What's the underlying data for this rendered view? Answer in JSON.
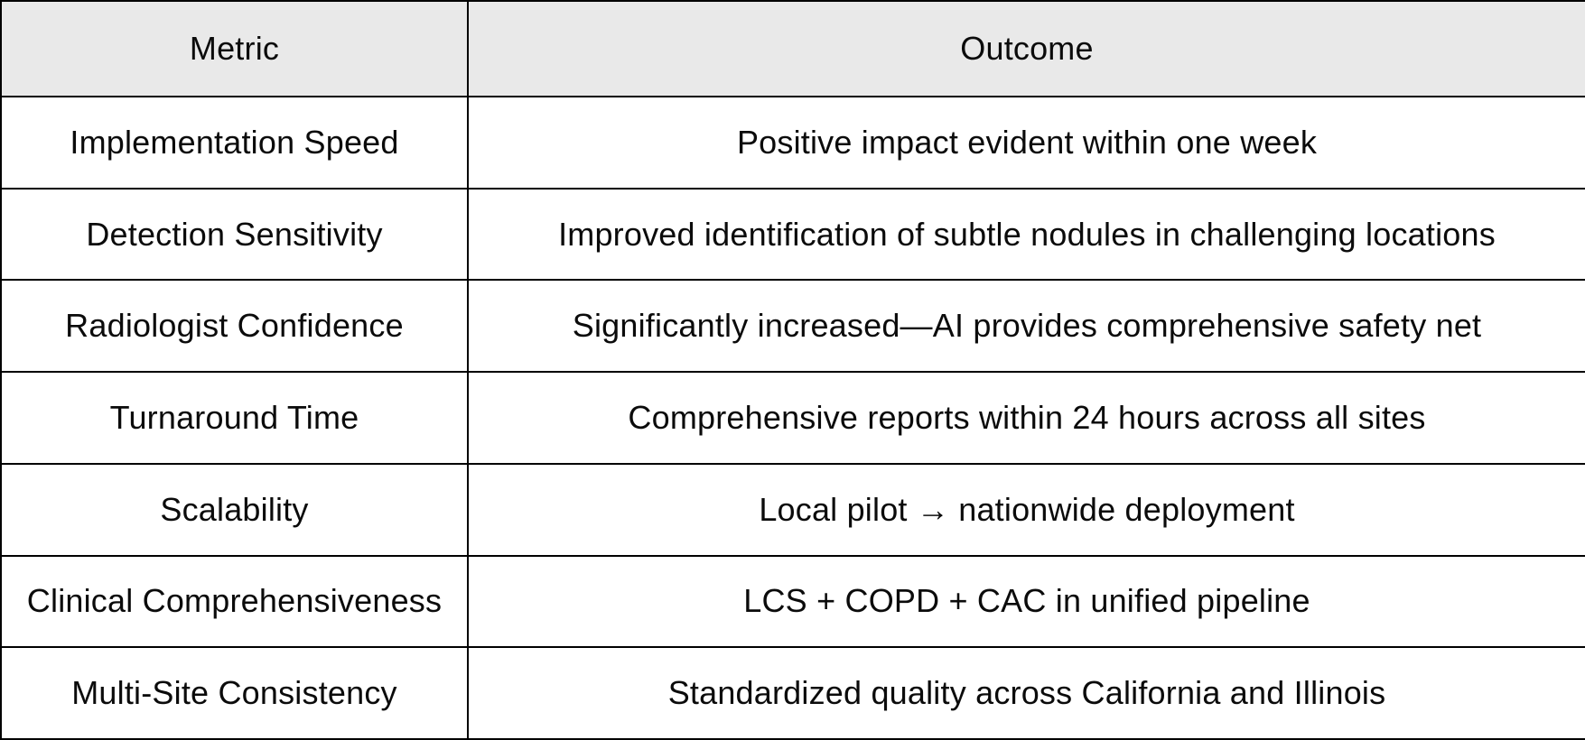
{
  "chart_data": {
    "type": "table",
    "columns": [
      "Metric",
      "Outcome"
    ],
    "rows": [
      {
        "metric": "Implementation Speed",
        "outcome": "Positive impact evident within one week"
      },
      {
        "metric": "Detection Sensitivity",
        "outcome": "Improved identification of subtle nodules in challenging locations"
      },
      {
        "metric": "Radiologist Confidence",
        "outcome": "Significantly increased—AI provides comprehensive safety net"
      },
      {
        "metric": "Turnaround Time",
        "outcome": "Comprehensive reports within 24 hours across all sites"
      },
      {
        "metric": "Scalability",
        "outcome": "Local pilot → nationwide deployment"
      },
      {
        "metric": "Clinical Comprehensiveness",
        "outcome": "LCS + COPD + CAC in unified pipeline"
      },
      {
        "metric": "Multi-Site Consistency",
        "outcome": "Standardized quality across California and Illinois"
      }
    ]
  },
  "columns": {
    "metric_header": "Metric",
    "outcome_header": "Outcome"
  },
  "colors": {
    "header_bg": "#e9e9e9",
    "border": "#000000",
    "text": "#0b0b0b",
    "row_bg": "#ffffff"
  }
}
